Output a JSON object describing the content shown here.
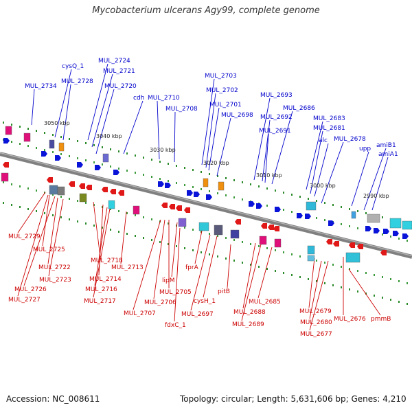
{
  "title": "Mycobacterium ulcerans Agy99, complete genome",
  "footer": {
    "accession": "Accession: NC_008611",
    "summary": "Topology: circular; Length: 5,631,606 bp; Genes: 4,210"
  },
  "colors": {
    "forward_label": "#0000cc",
    "reverse_label": "#cc0000",
    "backbone": "#808080",
    "tick": "#2a8a2a"
  },
  "scale_labels": [
    "3050 kbp",
    "3040 kbp",
    "3030 kbp",
    "3020 kbp",
    "3010 kbp",
    "3000 kbp",
    "2990 kbp"
  ],
  "forward_labels": [
    "MUL_2734",
    "cysQ_1",
    "MUL_2728",
    "MUL_2724",
    "MUL_2721",
    "MUL_2720",
    "cdh",
    "MUL_2710",
    "MUL_2708",
    "MUL_2703",
    "MUL_2702",
    "MUL_2701",
    "MUL_2698",
    "MUL_2693",
    "MUL_2686",
    "MUL_2692",
    "MUL_2691",
    "MUL_2683",
    "MUL_2681",
    "alc",
    "MUL_2678",
    "upp",
    "amiB1",
    "amiA1"
  ],
  "reverse_labels": [
    "MUL_2729",
    "MUL_2725",
    "MUL_2722",
    "MUL_2723",
    "MUL_2726",
    "MUL_2727",
    "MUL_2718",
    "MUL_2714",
    "MUL_2713",
    "MUL_2716",
    "MUL_2717",
    "lipM",
    "MUL_2705",
    "MUL_2706",
    "MUL_2707",
    "fdxC_1",
    "fprA",
    "MUL_2697",
    "cysH_1",
    "pitB",
    "MUL_2688",
    "MUL_2689",
    "MUL_2685",
    "MUL_2679",
    "MUL_2680",
    "MUL_2677",
    "MUL_2676",
    "pmmB"
  ]
}
